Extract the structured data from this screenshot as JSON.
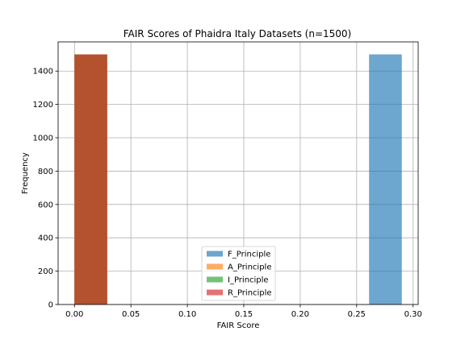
{
  "chart_data": {
    "type": "bar",
    "subtype": "histogram",
    "title": "FAIR Scores of Phaidra Italy Datasets (n=1500)",
    "xlabel": "FAIR Score",
    "ylabel": "Frequency",
    "xlim": [
      -0.0145,
      0.3045
    ],
    "ylim": [
      0,
      1575
    ],
    "xticks": [
      0.0,
      0.05,
      0.1,
      0.15,
      0.2,
      0.25,
      0.3
    ],
    "xtick_labels": [
      "0.00",
      "0.05",
      "0.10",
      "0.15",
      "0.20",
      "0.25",
      "0.30"
    ],
    "yticks": [
      0,
      200,
      400,
      600,
      800,
      1000,
      1200,
      1400
    ],
    "ytick_labels": [
      "0",
      "200",
      "400",
      "600",
      "800",
      "1000",
      "1200",
      "1400"
    ],
    "grid": true,
    "legend_position": "lower-center",
    "bar_width": 0.029,
    "series": [
      {
        "name": "F_Principle",
        "color": "#1f77b4",
        "alpha": 0.65,
        "bars": [
          {
            "x": 0.261,
            "value": 1500
          }
        ]
      },
      {
        "name": "A_Principle",
        "color": "#ff7f0e",
        "alpha": 0.65,
        "bars": [
          {
            "x": 0.0,
            "value": 1500
          }
        ]
      },
      {
        "name": "I_Principle",
        "color": "#2ca02c",
        "alpha": 0.65,
        "bars": [
          {
            "x": 0.0,
            "value": 1500
          }
        ]
      },
      {
        "name": "R_Principle",
        "color": "#d62728",
        "alpha": 0.65,
        "bars": [
          {
            "x": 0.0,
            "value": 1500
          }
        ]
      }
    ]
  }
}
